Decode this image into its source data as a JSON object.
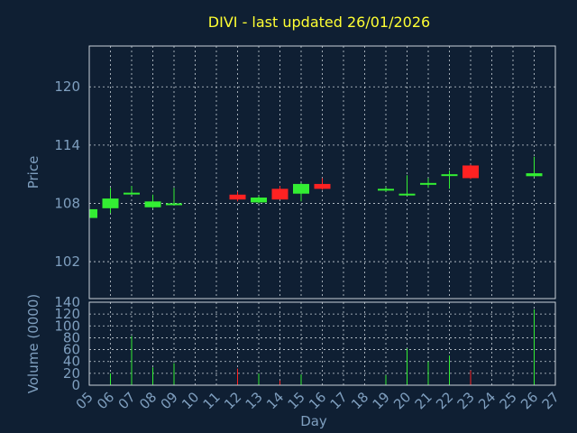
{
  "chart_data": {
    "type": "candlestick",
    "title": "DIVI - last updated 26/01/2026",
    "price_panel": {
      "ylabel": "Price",
      "yticks": [
        102,
        108,
        114,
        120
      ],
      "ylim": [
        98.2,
        124.2
      ]
    },
    "volume_panel": {
      "ylabel": "Volume (0000)",
      "yticks": [
        0,
        20,
        40,
        60,
        80,
        100,
        120,
        140
      ],
      "ylim": [
        0,
        140
      ]
    },
    "xlabel": "Day",
    "xticks": [
      "05",
      "06",
      "07",
      "08",
      "09",
      "10",
      "11",
      "12",
      "13",
      "14",
      "15",
      "16",
      "17",
      "18",
      "19",
      "20",
      "21",
      "22",
      "23",
      "24",
      "25",
      "26",
      "27"
    ],
    "up_color": "#33ee33",
    "down_color": "#ff2222",
    "candles": [
      {
        "day": "05",
        "open": 106.5,
        "high": 107.6,
        "low": 106.3,
        "close": 107.4,
        "volume": 0
      },
      {
        "day": "06",
        "open": 107.5,
        "high": 109.6,
        "low": 107.0,
        "close": 108.5,
        "volume": 20
      },
      {
        "day": "07",
        "open": 109.0,
        "high": 109.8,
        "low": 108.9,
        "close": 109.1,
        "volume": 83
      },
      {
        "day": "08",
        "open": 107.6,
        "high": 108.9,
        "low": 107.5,
        "close": 108.2,
        "volume": 30
      },
      {
        "day": "09",
        "open": 107.9,
        "high": 109.6,
        "low": 107.8,
        "close": 108.0,
        "volume": 37
      },
      {
        "day": "12",
        "open": 108.9,
        "high": 109.2,
        "low": 108.2,
        "close": 108.4,
        "volume": 28
      },
      {
        "day": "13",
        "open": 108.1,
        "high": 108.8,
        "low": 108.0,
        "close": 108.6,
        "volume": 20
      },
      {
        "day": "14",
        "open": 109.5,
        "high": 109.8,
        "low": 108.4,
        "close": 108.4,
        "volume": 8
      },
      {
        "day": "15",
        "open": 109.0,
        "high": 110.1,
        "low": 108.2,
        "close": 110.0,
        "volume": 18
      },
      {
        "day": "16",
        "open": 110.0,
        "high": 110.6,
        "low": 109.4,
        "close": 109.5,
        "volume": 0
      },
      {
        "day": "19",
        "open": 109.4,
        "high": 109.7,
        "low": 109.2,
        "close": 109.5,
        "volume": 17
      },
      {
        "day": "20",
        "open": 108.9,
        "high": 110.9,
        "low": 108.8,
        "close": 109.0,
        "volume": 62
      },
      {
        "day": "21",
        "open": 110.0,
        "high": 110.6,
        "low": 109.6,
        "close": 110.1,
        "volume": 40
      },
      {
        "day": "22",
        "open": 110.9,
        "high": 111.4,
        "low": 109.5,
        "close": 111.0,
        "volume": 50
      },
      {
        "day": "23",
        "open": 111.9,
        "high": 112.0,
        "low": 110.5,
        "close": 110.6,
        "volume": 25
      },
      {
        "day": "26",
        "open": 110.8,
        "high": 112.8,
        "low": 110.7,
        "close": 111.1,
        "volume": 128
      }
    ]
  }
}
